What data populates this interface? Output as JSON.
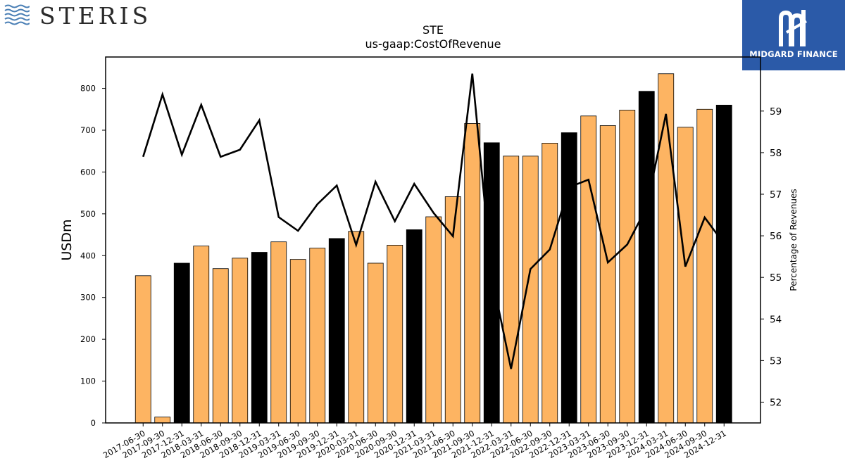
{
  "header": {
    "company_logo_text": "STERIS",
    "partner_logo_text": "MIDGARD FINANCE"
  },
  "chart_data": {
    "type": "bar",
    "title": "STE",
    "subtitle": "us-gaap:CostOfRevenue",
    "ylabel": "USDm",
    "y2label": "Percentage of Revenues",
    "ylim": [
      0,
      875
    ],
    "y2lim": [
      51.5,
      60.3
    ],
    "yticks": [
      0,
      100,
      200,
      300,
      400,
      500,
      600,
      700,
      800
    ],
    "y2ticks": [
      52,
      53,
      54,
      55,
      56,
      57,
      58,
      59
    ],
    "categories": [
      "2017-06-30",
      "2017-09-30",
      "2017-12-31",
      "2018-03-31",
      "2018-06-30",
      "2018-09-30",
      "2018-12-31",
      "2019-03-31",
      "2019-06-30",
      "2019-09-30",
      "2019-12-31",
      "2020-03-31",
      "2020-06-30",
      "2020-09-30",
      "2020-12-31",
      "2021-03-31",
      "2021-06-30",
      "2021-09-30",
      "2021-12-31",
      "2022-03-31",
      "2022-06-30",
      "2022-09-30",
      "2022-12-31",
      "2023-03-31",
      "2023-06-30",
      "2023-09-30",
      "2023-12-31",
      "2024-03-31",
      "2024-06-30",
      "2024-09-30",
      "2024-12-31"
    ],
    "values": [
      352,
      14,
      382,
      423,
      369,
      394,
      408,
      433,
      391,
      418,
      441,
      458,
      382,
      425,
      462,
      493,
      541,
      716,
      670,
      638,
      638,
      669,
      694,
      734,
      711,
      748,
      793,
      835,
      707,
      750,
      760
    ],
    "bar_highlight": [
      false,
      false,
      true,
      false,
      false,
      false,
      true,
      false,
      false,
      false,
      true,
      false,
      false,
      false,
      true,
      false,
      false,
      false,
      true,
      false,
      false,
      false,
      true,
      false,
      false,
      false,
      true,
      false,
      false,
      false,
      true
    ],
    "line_series": {
      "values": [
        57.9,
        59.4,
        57.95,
        59.15,
        57.9,
        58.07,
        58.78,
        56.45,
        56.12,
        56.76,
        57.21,
        55.78,
        57.3,
        56.35,
        57.25,
        56.55,
        55.99,
        59.9,
        55.05,
        52.8,
        55.2,
        55.67,
        57.17,
        57.35,
        55.36,
        55.79,
        56.68,
        58.93,
        55.26,
        56.44,
        55.81
      ]
    },
    "colors": {
      "bar": "#fdb462",
      "bar_highlight": "#000000",
      "line": "#000000"
    },
    "grid": false,
    "legend": "none"
  }
}
